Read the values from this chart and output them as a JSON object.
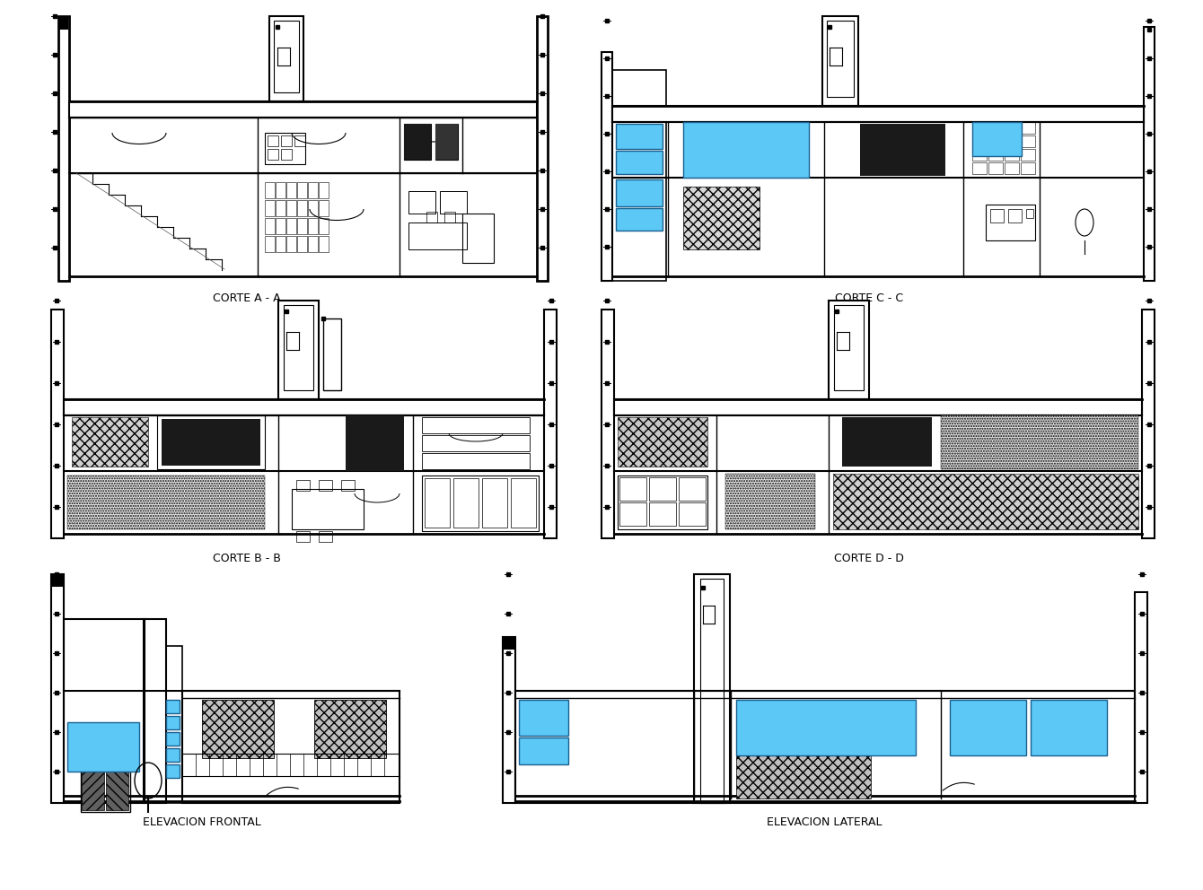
{
  "background_color": "#ffffff",
  "blue_win": "#5BC8F5",
  "blue_win_edge": "#1a6090",
  "labels": {
    "top_left": "CORTE A - A",
    "top_right": "CORTE C - C",
    "mid_left": "CORTE B - B",
    "mid_right": "CORTE D - D",
    "bot_left": "ELEVACION FRONTAL",
    "bot_right": "ELEVACION LATERAL"
  }
}
